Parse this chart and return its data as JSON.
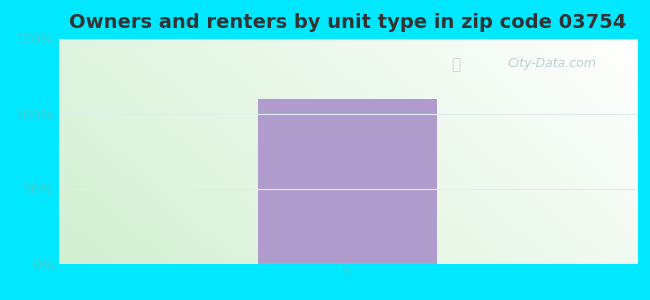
{
  "title": "Owners and renters by unit type in zip code 03754",
  "bar_x": [
    2
  ],
  "bar_height": [
    110
  ],
  "bar_color": "#b09ccc",
  "bar_width": 0.62,
  "xlim": [
    1,
    3
  ],
  "ylim": [
    0,
    150
  ],
  "yticks": [
    0,
    50,
    100,
    150
  ],
  "ytick_labels": [
    "0%",
    "50%",
    "100%",
    "150%"
  ],
  "xtick_val": 2,
  "bg_outer": "#00e8ff",
  "watermark": "City-Data.com",
  "title_fontsize": 14,
  "tick_fontsize": 10,
  "tick_color": "#44cccc",
  "grid_color": "#ddeeee",
  "watermark_color": "#aacccc"
}
